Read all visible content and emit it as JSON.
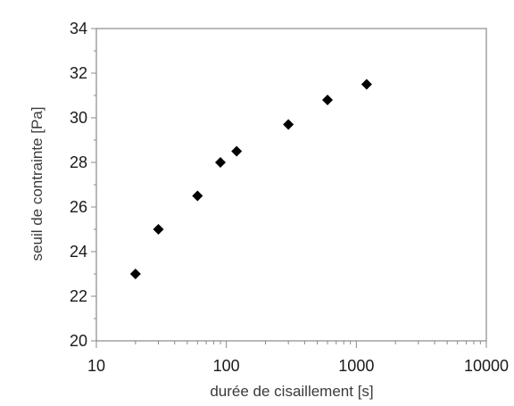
{
  "chart_data": {
    "type": "scatter",
    "title": "",
    "xlabel": "durée de cisaillement [s]",
    "ylabel": "seuil de contrainte [Pa]",
    "xscale": "log",
    "xlim": [
      10,
      10000
    ],
    "ylim": [
      20,
      34
    ],
    "xticks": [
      "10",
      "100",
      "1000",
      "10000"
    ],
    "yticks": [
      "20",
      "22",
      "24",
      "26",
      "28",
      "30",
      "32",
      "34"
    ],
    "grid": false,
    "legend": "none",
    "marker": "diamond",
    "marker_color": "#000000",
    "series": [
      {
        "x": [
          20,
          30,
          60,
          90,
          120,
          300,
          600,
          1200
        ],
        "y": [
          23.0,
          25.0,
          26.5,
          28.0,
          28.5,
          29.7,
          30.8,
          31.5
        ]
      }
    ]
  }
}
